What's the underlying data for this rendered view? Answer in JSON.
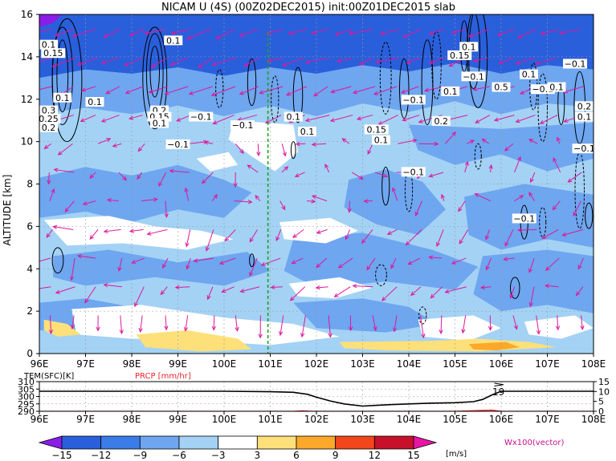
{
  "chart_data": [
    {
      "type": "heatmap",
      "title": "NICAM U (4S) (00Z02DEC2015) init:00Z01DEC2015 slab",
      "ylabel": "ALTITUDE [km]",
      "xlim": [
        96,
        108
      ],
      "ylim": [
        0,
        16
      ],
      "x_ticks": [
        "96E",
        "97E",
        "98E",
        "99E",
        "100E",
        "101E",
        "102E",
        "103E",
        "104E",
        "105E",
        "106E",
        "107E",
        "108E"
      ],
      "y_ticks": [
        "0",
        "2",
        "4",
        "6",
        "8",
        "10",
        "12",
        "14",
        "16"
      ],
      "grid": true,
      "marker_line": {
        "x": 100.95,
        "color": "#1aa31a",
        "style": "dashed"
      },
      "contour_labels": [
        {
          "text": "0.1",
          "x": 97.2,
          "y": 11.8
        },
        {
          "text": "0.1",
          "x": 98.9,
          "y": 14.7
        },
        {
          "text": "0.2",
          "x": 98.6,
          "y": 11.4
        },
        {
          "text": "0.15",
          "x": 98.6,
          "y": 11.1
        },
        {
          "text": "0.1",
          "x": 98.6,
          "y": 10.8
        },
        {
          "text": "−0.1",
          "x": 99.5,
          "y": 11.1
        },
        {
          "text": "−0.1",
          "x": 100.4,
          "y": 10.7
        },
        {
          "text": "−0.1",
          "x": 99.0,
          "y": 9.8
        },
        {
          "text": "0.1",
          "x": 96.2,
          "y": 14.5
        },
        {
          "text": "0.15",
          "x": 96.3,
          "y": 14.1
        },
        {
          "text": "0.3",
          "x": 96.2,
          "y": 11.4
        },
        {
          "text": "0.25",
          "x": 96.2,
          "y": 11.0
        },
        {
          "text": "0.2",
          "x": 96.2,
          "y": 10.6
        },
        {
          "text": "0.1",
          "x": 96.5,
          "y": 12.0
        },
        {
          "text": "0.1",
          "x": 101.5,
          "y": 11.1
        },
        {
          "text": "0.1",
          "x": 101.8,
          "y": 10.4
        },
        {
          "text": "0.15",
          "x": 103.3,
          "y": 10.5
        },
        {
          "text": "0.1",
          "x": 103.4,
          "y": 10.0
        },
        {
          "text": "0.1",
          "x": 105.3,
          "y": 14.4
        },
        {
          "text": "0.15",
          "x": 105.1,
          "y": 14.0
        },
        {
          "text": "−0.1",
          "x": 105.4,
          "y": 13.0
        },
        {
          "text": "−0.1",
          "x": 104.1,
          "y": 11.9
        },
        {
          "text": "0.2",
          "x": 104.7,
          "y": 10.9
        },
        {
          "text": "0.1",
          "x": 104.9,
          "y": 12.3
        },
        {
          "text": "0.5",
          "x": 106.0,
          "y": 12.5
        },
        {
          "text": "0.1",
          "x": 106.6,
          "y": 13.1
        },
        {
          "text": "−0.1",
          "x": 106.9,
          "y": 12.4
        },
        {
          "text": "0.1",
          "x": 107.2,
          "y": 12.5
        },
        {
          "text": "−0.1",
          "x": 107.6,
          "y": 13.6
        },
        {
          "text": "0.2",
          "x": 107.8,
          "y": 11.6
        },
        {
          "text": "0.1",
          "x": 107.8,
          "y": 11.1
        },
        {
          "text": "−0.1",
          "x": 107.8,
          "y": 9.6
        },
        {
          "text": "−0.1",
          "x": 104.1,
          "y": 8.5
        },
        {
          "text": "−0.1",
          "x": 106.5,
          "y": 6.3
        }
      ],
      "wind_label": "Wx100(vector)"
    },
    {
      "type": "line",
      "series_labels": {
        "temperature": "TEM(SFC)[K]",
        "precip": "PRCP [mm/hr]"
      },
      "left_ticks": [
        "290",
        "295",
        "300",
        "305",
        "310"
      ],
      "left_ylim": [
        290,
        310
      ],
      "right_ticks": [
        "0",
        "5",
        "10",
        "15"
      ],
      "right_ylim": [
        0,
        15
      ],
      "x_ticks": [
        "96E",
        "97E",
        "98E",
        "99E",
        "100E",
        "101E",
        "102E",
        "103E",
        "104E",
        "105E",
        "106E",
        "107E",
        "108E"
      ],
      "annotation": "19",
      "series": [
        {
          "name": "TEM(SFC)[K]",
          "color": "#000000",
          "x": [
            96,
            96.5,
            97,
            98,
            99,
            100,
            101,
            101.5,
            101.8,
            102,
            102.3,
            102.6,
            103,
            103.3,
            103.6,
            104,
            104.5,
            105,
            105.4,
            105.6,
            105.8,
            106,
            106.2,
            107,
            108
          ],
          "values": [
            303.5,
            303.5,
            303.5,
            303.5,
            303.5,
            303.5,
            303.2,
            302.8,
            301.5,
            299.5,
            297,
            295,
            293.5,
            294,
            294.5,
            295,
            295.5,
            295.8,
            296.5,
            298,
            301,
            303.5,
            303.5,
            303.5,
            303.5
          ]
        },
        {
          "name": "PRCP [mm/hr]",
          "color": "#e8242c",
          "x": [
            96,
            101.5,
            101.7,
            101.9,
            102,
            103,
            104,
            105,
            105.8,
            106,
            108
          ],
          "values": [
            0,
            0,
            0.3,
            0,
            0,
            0,
            0,
            0,
            0.6,
            0,
            0
          ]
        }
      ]
    }
  ],
  "colorbar": {
    "ticks": [
      "−15",
      "−12",
      "−9",
      "−6",
      "−3",
      "3",
      "6",
      "9",
      "12",
      "15"
    ],
    "unit": "[m/s]",
    "colors": [
      "#8a1ee6",
      "#2a5fdc",
      "#3c7ce8",
      "#6ea6f0",
      "#a3d2f5",
      "#ffffff",
      "#fde07a",
      "#fba82b",
      "#f3461d",
      "#c8102a",
      "#e814a4"
    ]
  },
  "heat_palette": {
    "dark_blue": "#2a5fdc",
    "mid_blue": "#6ea6f0",
    "light_blue": "#a3d2f5",
    "white": "#ffffff",
    "yellow": "#fde07a",
    "orange": "#fba82b",
    "purple": "#8a1ee6"
  },
  "vector_color": "#e0179a"
}
